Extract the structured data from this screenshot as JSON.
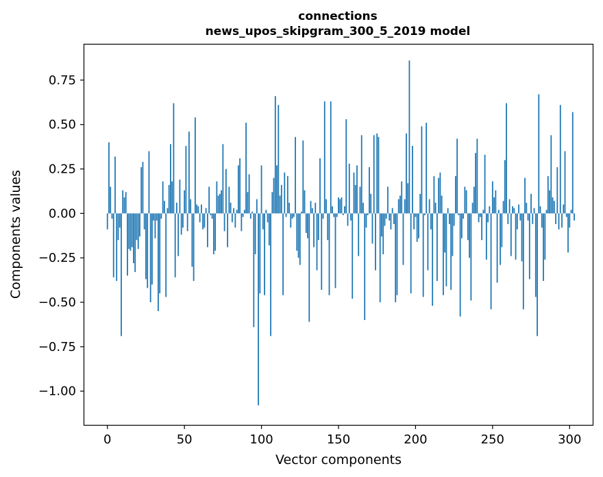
{
  "chart_data": {
    "type": "bar",
    "title": "connections",
    "subtitle": "news_upos_skipgram_300_5_2019 model",
    "xlabel": "Vector components",
    "ylabel": "Components values",
    "xlim": [
      -15,
      315
    ],
    "ylim": [
      -1.19,
      0.95
    ],
    "xticks": [
      0,
      50,
      100,
      150,
      200,
      250,
      300
    ],
    "xtick_labels": [
      "0",
      "50",
      "100",
      "150",
      "200",
      "250",
      "300"
    ],
    "yticks": [
      0.75,
      0.5,
      0.25,
      0.0,
      -0.25,
      -0.5,
      -0.75,
      -1.0
    ],
    "ytick_labels": [
      "0.75",
      "0.50",
      "0.25",
      "0.00",
      "−0.25",
      "−0.50",
      "−0.75",
      "−1.00"
    ],
    "grid": false,
    "bar_color": "#1f77b4",
    "values": [
      -0.09,
      0.4,
      0.15,
      -0.03,
      -0.36,
      0.32,
      -0.38,
      -0.15,
      -0.08,
      -0.69,
      0.13,
      0.09,
      0.12,
      -0.35,
      -0.2,
      -0.21,
      -0.19,
      -0.28,
      -0.33,
      -0.15,
      -0.2,
      -0.13,
      0.26,
      0.29,
      -0.09,
      -0.37,
      -0.42,
      0.35,
      -0.5,
      -0.4,
      -0.04,
      -0.14,
      -0.04,
      -0.55,
      -0.45,
      -0.03,
      0.18,
      0.07,
      -0.47,
      0.03,
      0.16,
      0.39,
      0.18,
      0.62,
      -0.36,
      0.06,
      -0.24,
      0.19,
      -0.12,
      -0.08,
      0.13,
      0.38,
      -0.1,
      0.46,
      0.08,
      -0.3,
      -0.38,
      0.54,
      0.05,
      0.04,
      -0.05,
      0.05,
      -0.09,
      -0.08,
      0.03,
      -0.19,
      0.15,
      -0.01,
      -0.03,
      -0.23,
      -0.21,
      0.18,
      0.1,
      0.11,
      0.13,
      0.39,
      -0.1,
      0.25,
      -0.19,
      0.15,
      0.06,
      -0.05,
      0.03,
      -0.08,
      0.02,
      0.27,
      0.31,
      -0.1,
      -0.02,
      0.02,
      0.51,
      0.12,
      0.22,
      -0.03,
      0.01,
      -0.64,
      -0.23,
      0.08,
      -1.08,
      -0.45,
      0.27,
      -0.09,
      -0.46,
      0.02,
      -0.05,
      -0.18,
      -0.69,
      0.12,
      0.2,
      0.66,
      0.27,
      0.61,
      0.1,
      0.16,
      -0.46,
      0.23,
      -0.02,
      0.21,
      0.06,
      -0.08,
      -0.03,
      -0.02,
      0.43,
      -0.21,
      -0.25,
      -0.29,
      0.01,
      0.41,
      0.13,
      -0.11,
      -0.14,
      -0.61,
      0.07,
      0.03,
      -0.19,
      0.06,
      -0.32,
      -0.15,
      0.31,
      -0.43,
      -0.03,
      0.63,
      0.08,
      -0.15,
      -0.46,
      0.63,
      0.04,
      -0.02,
      -0.42,
      -0.02,
      0.09,
      0.08,
      0.09,
      -0.01,
      0.04,
      0.53,
      -0.07,
      0.28,
      -0.04,
      -0.48,
      0.23,
      0.16,
      0.27,
      -0.24,
      0.15,
      0.44,
      0.06,
      -0.6,
      -0.08,
      -0.01,
      0.26,
      0.11,
      -0.17,
      0.44,
      -0.32,
      0.45,
      0.43,
      -0.5,
      -0.13,
      -0.23,
      -0.07,
      -0.03,
      0.15,
      -0.04,
      -0.09,
      0.03,
      -0.06,
      -0.5,
      -0.46,
      0.08,
      0.1,
      0.18,
      -0.29,
      0.08,
      0.45,
      0.17,
      0.86,
      -0.45,
      0.38,
      -0.09,
      -0.02,
      -0.16,
      -0.14,
      0.11,
      0.49,
      -0.47,
      -0.01,
      0.51,
      -0.32,
      0.08,
      -0.09,
      -0.52,
      0.21,
      0.06,
      -0.38,
      0.2,
      0.23,
      0.1,
      -0.46,
      -0.22,
      -0.41,
      0.03,
      -0.06,
      -0.43,
      -0.24,
      -0.07,
      0.21,
      0.42,
      -0.01,
      -0.58,
      -0.14,
      -0.03,
      0.15,
      0.13,
      -0.15,
      -0.25,
      -0.49,
      0.06,
      0.15,
      0.34,
      0.42,
      -0.05,
      -0.02,
      -0.15,
      0.02,
      0.33,
      -0.26,
      -0.05,
      0.04,
      -0.54,
      0.18,
      0.09,
      0.13,
      -0.39,
      0.02,
      -0.29,
      -0.19,
      0.07,
      0.3,
      0.62,
      -0.06,
      0.08,
      -0.24,
      0.04,
      0.03,
      -0.26,
      -0.09,
      0.05,
      -0.04,
      -0.27,
      -0.54,
      0.2,
      0.06,
      -0.04,
      -0.37,
      0.11,
      -0.06,
      0.03,
      -0.47,
      -0.69,
      0.67,
      0.04,
      -0.08,
      -0.38,
      -0.26,
      0.02,
      0.21,
      0.13,
      0.44,
      0.09,
      0.07,
      -0.06,
      0.26,
      -0.09,
      0.61,
      -0.08,
      0.05,
      0.35,
      -0.02,
      -0.22,
      -0.08,
      0.02,
      0.57,
      -0.04
    ]
  }
}
